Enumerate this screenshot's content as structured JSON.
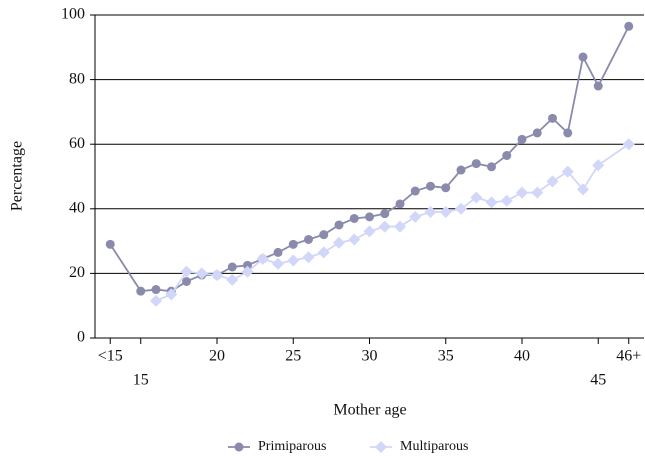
{
  "chart_data": {
    "type": "line",
    "x_label": "Mother age",
    "y_label": "Percentage",
    "x": [
      13,
      15,
      16,
      17,
      18,
      19,
      20,
      21,
      22,
      23,
      24,
      25,
      26,
      27,
      28,
      29,
      30,
      31,
      32,
      33,
      34,
      35,
      36,
      37,
      38,
      39,
      40,
      41,
      42,
      43,
      44,
      45,
      47
    ],
    "series": [
      {
        "name": "Primiparous",
        "color": "#8a8aac",
        "marker": "circle",
        "values": [
          29,
          14.5,
          15,
          14.5,
          17.5,
          19.5,
          19.5,
          22,
          22.5,
          24.5,
          26.5,
          29,
          30.5,
          32,
          35,
          37,
          37.5,
          38.5,
          41.5,
          45.5,
          47,
          46.5,
          52,
          54,
          53,
          56.5,
          61.5,
          63.5,
          68,
          63.5,
          87,
          78,
          96.5
        ]
      },
      {
        "name": "Multiparous",
        "color": "#d2d6f8",
        "marker": "diamond",
        "values": [
          null,
          null,
          11.5,
          13.5,
          20.5,
          20,
          19.5,
          18,
          20.5,
          24.5,
          23,
          24,
          25,
          26.5,
          29.5,
          30.5,
          33,
          34.5,
          34.5,
          37.5,
          39,
          39,
          40,
          43.5,
          42,
          42.5,
          45,
          45,
          48.5,
          51.5,
          46,
          53.5,
          60
        ]
      }
    ],
    "xlim": [
      12,
      48
    ],
    "xticks": [
      {
        "value": 13,
        "label": "<15"
      },
      15,
      20,
      25,
      30,
      35,
      40,
      45,
      {
        "value": 47,
        "label": "46+"
      }
    ],
    "ylim": [
      0,
      100
    ],
    "yticks": [
      0,
      20,
      40,
      60,
      80,
      100
    ],
    "grid": true,
    "legend": "bottom"
  }
}
